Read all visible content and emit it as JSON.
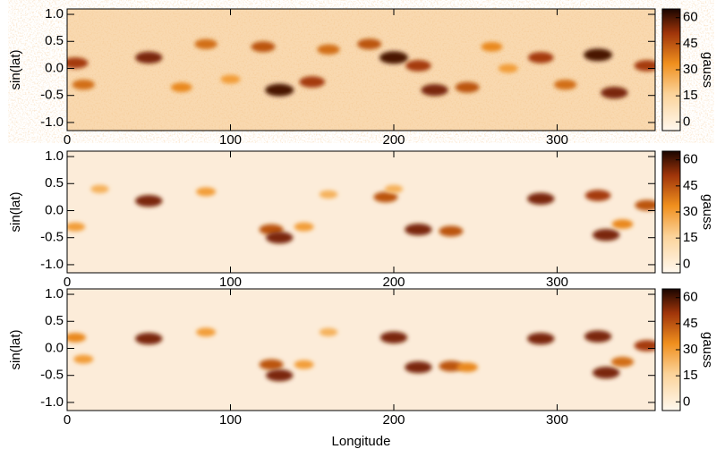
{
  "chart_data": [
    {
      "type": "heatmap",
      "ylabel": "sin(lat)",
      "clabel": "gauss",
      "background": "#f9d9b0",
      "xlim": [
        0,
        360
      ],
      "xticks": [
        0,
        100,
        200,
        300
      ],
      "ylim": [
        -1.15,
        1.1
      ],
      "yticks": [
        {
          "value": -1,
          "label": "-1.0"
        },
        {
          "value": -0.5,
          "label": "-0.5"
        },
        {
          "value": 0,
          "label": "0.0"
        },
        {
          "value": 0.5,
          "label": "0.5"
        },
        {
          "value": 1,
          "label": "1.0"
        }
      ],
      "clim": [
        -5,
        65
      ],
      "cticks": [
        0,
        15,
        30,
        45,
        60
      ],
      "x": [
        5,
        10,
        50,
        85,
        70,
        120,
        130,
        150,
        160,
        185,
        200,
        215,
        225,
        245,
        260,
        290,
        305,
        325,
        335,
        355,
        100,
        270
      ],
      "y": [
        0.1,
        -0.3,
        0.2,
        0.45,
        -0.35,
        0.4,
        -0.4,
        -0.25,
        0.35,
        0.45,
        0.2,
        0.05,
        -0.4,
        -0.35,
        0.4,
        0.2,
        -0.3,
        0.25,
        -0.45,
        0.05,
        -0.2,
        0.0
      ],
      "values": [
        50,
        40,
        55,
        40,
        35,
        45,
        60,
        50,
        40,
        45,
        60,
        50,
        55,
        45,
        35,
        50,
        40,
        60,
        55,
        50,
        30,
        30
      ]
    },
    {
      "type": "heatmap",
      "ylabel": "sin(lat)",
      "clabel": "gauss",
      "background": "#fcecd9",
      "xlim": [
        0,
        360
      ],
      "xticks": [
        0,
        100,
        200,
        300
      ],
      "ylim": [
        -1.15,
        1.1
      ],
      "yticks": [
        {
          "value": -1,
          "label": "-1.0"
        },
        {
          "value": -0.5,
          "label": "-0.5"
        },
        {
          "value": 0,
          "label": "0.0"
        },
        {
          "value": 0.5,
          "label": "0.5"
        },
        {
          "value": 1,
          "label": "1.0"
        }
      ],
      "clim": [
        -5,
        65
      ],
      "cticks": [
        0,
        15,
        30,
        45,
        60
      ],
      "x": [
        50,
        20,
        5,
        85,
        125,
        130,
        145,
        195,
        215,
        235,
        200,
        290,
        325,
        330,
        340,
        355,
        160
      ],
      "y": [
        0.18,
        0.4,
        -0.3,
        0.35,
        -0.35,
        -0.5,
        -0.3,
        0.25,
        -0.35,
        -0.38,
        0.4,
        0.22,
        0.28,
        -0.45,
        -0.25,
        0.1,
        0.3
      ],
      "values": [
        55,
        25,
        30,
        30,
        45,
        55,
        30,
        45,
        55,
        45,
        25,
        55,
        50,
        55,
        35,
        45,
        25
      ]
    },
    {
      "type": "heatmap",
      "ylabel": "sin(lat)",
      "clabel": "gauss",
      "background": "#fcecd9",
      "xlabel": "Longitude",
      "xlim": [
        0,
        360
      ],
      "xticks": [
        0,
        100,
        200,
        300
      ],
      "ylim": [
        -1.15,
        1.1
      ],
      "yticks": [
        {
          "value": -1,
          "label": "-1.0"
        },
        {
          "value": -0.5,
          "label": "-0.5"
        },
        {
          "value": 0,
          "label": "0.0"
        },
        {
          "value": 0.5,
          "label": "0.5"
        },
        {
          "value": 1,
          "label": "1.0"
        }
      ],
      "clim": [
        -5,
        65
      ],
      "cticks": [
        0,
        15,
        30,
        45,
        60
      ],
      "x": [
        50,
        5,
        10,
        85,
        125,
        130,
        145,
        200,
        215,
        235,
        245,
        290,
        325,
        330,
        340,
        355,
        160
      ],
      "y": [
        0.18,
        0.2,
        -0.2,
        0.3,
        -0.3,
        -0.5,
        -0.3,
        0.2,
        -0.35,
        -0.33,
        -0.35,
        0.18,
        0.22,
        -0.45,
        -0.25,
        0.05,
        0.3
      ],
      "values": [
        55,
        35,
        30,
        30,
        45,
        55,
        30,
        55,
        55,
        45,
        35,
        55,
        55,
        55,
        40,
        50,
        25
      ]
    }
  ]
}
